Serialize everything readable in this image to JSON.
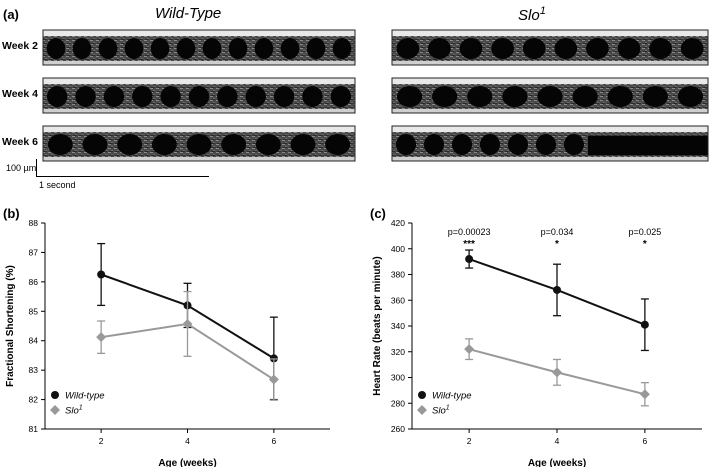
{
  "panels": {
    "a": "(a)",
    "b": "(b)",
    "c": "(c)"
  },
  "echo": {
    "groups": [
      {
        "title": "Wild-Type"
      },
      {
        "title": "Slo",
        "superscript": "1"
      }
    ],
    "weeks": [
      "Week 2",
      "Week 4",
      "Week 6"
    ],
    "scale": {
      "vertical": "100 µm",
      "horizontal": "1 second"
    }
  },
  "chart_data": [
    {
      "type": "line",
      "xlabel": "Age (weeks)",
      "ylabel": "Fractional Shortening (%)",
      "x": [
        2,
        4,
        6
      ],
      "ylim": [
        81,
        88
      ],
      "yticks": [
        81,
        82,
        83,
        84,
        85,
        86,
        87,
        88
      ],
      "legend_position": "bottom-left",
      "series": [
        {
          "name": "Wild-type",
          "values": [
            86.25,
            85.2,
            83.4
          ],
          "error": [
            1.05,
            0.75,
            1.4
          ],
          "color": "#111111",
          "marker": "circle"
        },
        {
          "name": "Slo",
          "superscript": "1",
          "values": [
            84.12,
            84.57,
            82.68
          ],
          "error": [
            0.55,
            1.1,
            0.7
          ],
          "color": "#999999",
          "marker": "diamond"
        }
      ]
    },
    {
      "type": "line",
      "xlabel": "Age (weeks)",
      "ylabel": "Heart Rate (beats per minute)",
      "x": [
        2,
        4,
        6
      ],
      "ylim": [
        260,
        420
      ],
      "yticks": [
        260,
        280,
        300,
        320,
        340,
        360,
        380,
        400,
        420
      ],
      "legend_position": "bottom-left",
      "annotations": [
        {
          "x": 2,
          "p": "p=0.00023",
          "stars": "***"
        },
        {
          "x": 4,
          "p": "p=0.034",
          "stars": "*"
        },
        {
          "x": 6,
          "p": "p=0.025",
          "stars": "*"
        }
      ],
      "series": [
        {
          "name": "Wild-type",
          "values": [
            392,
            368,
            341
          ],
          "error": [
            7,
            20,
            20
          ],
          "color": "#111111",
          "marker": "circle"
        },
        {
          "name": "Slo",
          "superscript": "1",
          "values": [
            322,
            304,
            287
          ],
          "error": [
            8,
            10,
            9
          ],
          "color": "#999999",
          "marker": "diamond"
        }
      ]
    }
  ]
}
